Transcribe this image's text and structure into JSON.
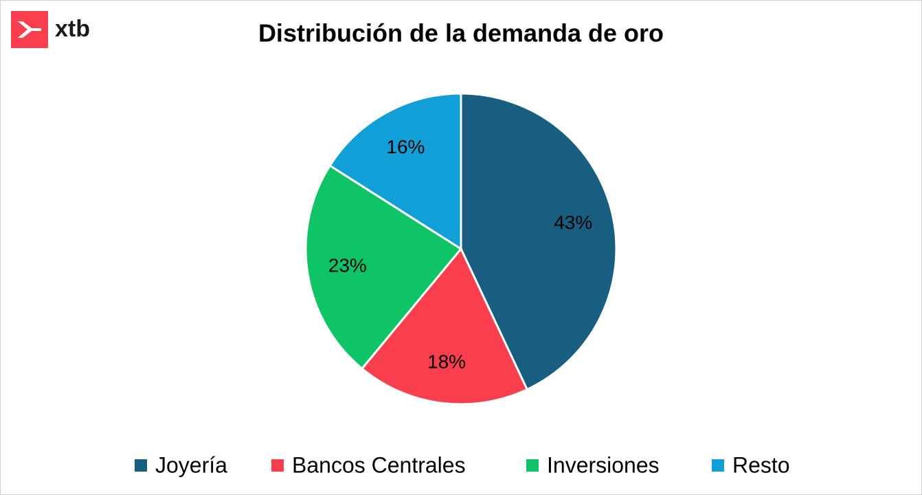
{
  "brand": "xtb",
  "chart_data": {
    "type": "pie",
    "title": "Distribución de la demanda de oro",
    "categories": [
      "Joyería",
      "Bancos Centrales",
      "Inversiones",
      "Resto"
    ],
    "values": [
      43,
      18,
      23,
      16
    ],
    "value_labels": [
      "43%",
      "18%",
      "23%",
      "16%"
    ],
    "colors": [
      "#175e80",
      "#f93f4d",
      "#0fc466",
      "#119fd8"
    ],
    "legend": "bottom"
  }
}
